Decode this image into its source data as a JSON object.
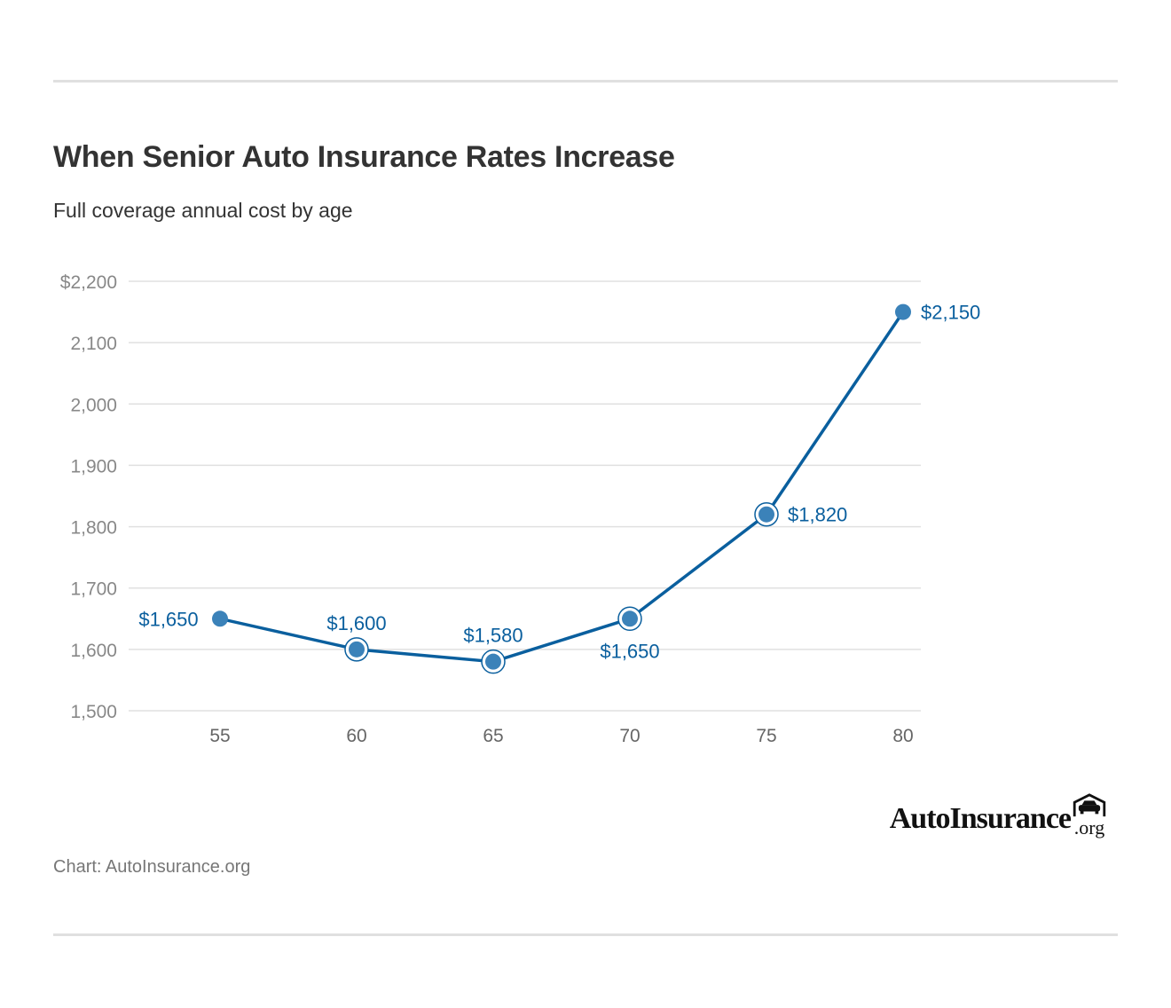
{
  "title": "When Senior Auto Insurance Rates Increase",
  "subtitle": "Full coverage annual cost by age",
  "source": "Chart: AutoInsurance.org",
  "logo": {
    "name": "AutoInsurance",
    "suffix": ".org",
    "icon": "car-garage-icon"
  },
  "colors": {
    "line": "#0a5f9e",
    "marker": "#3b82b9",
    "label": "#0a5f9e",
    "grid": "#e0e0e0",
    "tick": "#888888"
  },
  "chart_data": {
    "type": "line",
    "title": "When Senior Auto Insurance Rates Increase",
    "subtitle": "Full coverage annual cost by age",
    "x": [
      55,
      60,
      65,
      70,
      75,
      80
    ],
    "x_tick_labels": [
      "55",
      "60",
      "65",
      "70",
      "75",
      "80"
    ],
    "series": [
      {
        "values": [
          1650,
          1600,
          1580,
          1650,
          1820,
          2150
        ],
        "data_labels": [
          "$1,650",
          "$1,600",
          "$1,580",
          "$1,650",
          "$1,820",
          "$2,150"
        ]
      }
    ],
    "ylim": [
      1500,
      2200
    ],
    "y_ticks": [
      1500,
      1600,
      1700,
      1800,
      1900,
      2000,
      2100,
      2200
    ],
    "y_tick_labels": [
      "1,500",
      "1,600",
      "1,700",
      "1,800",
      "1,900",
      "2,000",
      "2,100",
      "$2,200"
    ],
    "grid": true,
    "legend": "none",
    "xlabel": "",
    "ylabel": ""
  }
}
